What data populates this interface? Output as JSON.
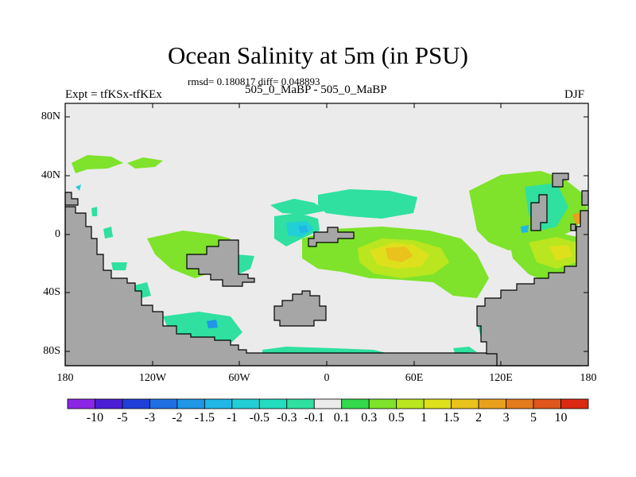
{
  "title": "Ocean Salinity at 5m (in PSU)",
  "subtitle": "rmsd= 0.180817 diff= 0.048893",
  "left_label": "Expt = tfKSx-tfKEx",
  "center_label": "505_0_MaBP - 505_0_MaBP",
  "right_label": "DJF",
  "lat_ticks": [
    "80N",
    "40N",
    "0",
    "40S",
    "80S"
  ],
  "lon_ticks": [
    "180",
    "120W",
    "60W",
    "0",
    "60E",
    "120E",
    "180"
  ],
  "colorbar": {
    "labels": [
      "-10",
      "-5",
      "-3",
      "-2",
      "-1.5",
      "-1",
      "-0.5",
      "-0.3",
      "-0.1",
      "0.1",
      "0.3",
      "0.5",
      "1",
      "1.5",
      "2",
      "3",
      "5",
      "10"
    ],
    "colors": [
      "#8c26e6",
      "#4b1ed6",
      "#1f3fd8",
      "#1f6fe3",
      "#1f96e6",
      "#20b6e6",
      "#22cfd6",
      "#24dcbe",
      "#2fe0a0",
      "#ebebeb",
      "#33d94a",
      "#7ee32a",
      "#b9e61f",
      "#dfe01c",
      "#e9c21c",
      "#e9a11c",
      "#e37a1c",
      "#e0561c",
      "#db2a12"
    ]
  },
  "colors": {
    "land": "#a6a6a6",
    "neutral_ocean": "#ebebeb"
  }
}
